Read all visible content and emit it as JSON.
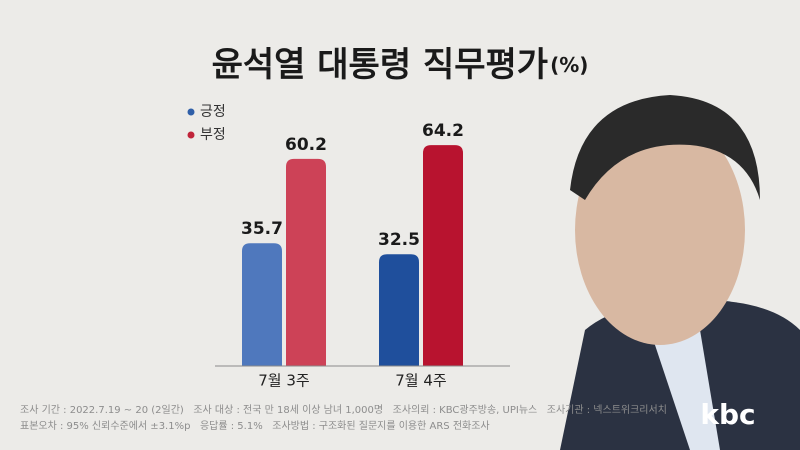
{
  "chart_data": {
    "type": "bar",
    "title": "윤석열 대통령 직무평가",
    "unit": "(%)",
    "categories": [
      "7월 3주",
      "7월 4주"
    ],
    "series": [
      {
        "name": "긍정",
        "color": "#2f5fa8",
        "colors": [
          "#4f78bd",
          "#1f4f9c"
        ],
        "values": [
          35.7,
          32.5
        ]
      },
      {
        "name": "부정",
        "color": "#c0243a",
        "colors": [
          "#cd4257",
          "#b8132f"
        ],
        "values": [
          60.2,
          64.2
        ]
      }
    ],
    "notes": [
      "조사 기간 : 2022.7.19 ~ 20 (2일간)   조사 대상 : 전국 만 18세 이상 남녀 1,000명   조사의뢰 : KBC광주방송, UPI뉴스   조사기관 : 넥스트위크리서치",
      "표본오차 : 95% 신뢰수준에서 ±3.1%p   응답률 : 5.1%   조사방법 : 구조화된 질문지를 이용한 ARS 전화조사"
    ],
    "logo": "kbc"
  }
}
